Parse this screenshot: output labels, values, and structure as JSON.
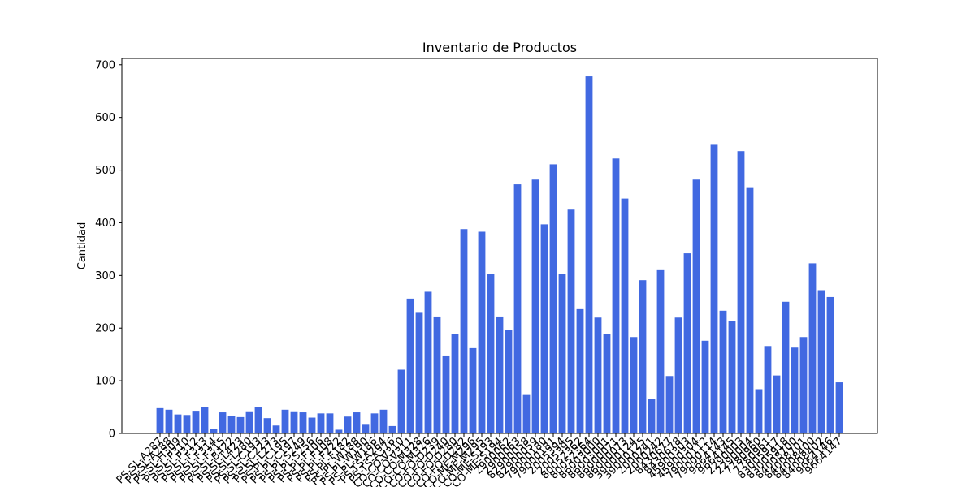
{
  "chart_data": {
    "type": "bar",
    "title": "Inventario de Productos",
    "y_label": "Cantidad",
    "categories": [
      "PS-SL-A287",
      "PS-SL-A288",
      "PS-SL-H309",
      "PS-SL-P310",
      "PS-SL-P312",
      "PS-SL-F313",
      "PS-SL-F314",
      "PS-SL-F315",
      "PS-SL-B422",
      "PS-SL-L423",
      "PS-SL-L280",
      "PS-SL-C193",
      "PS-SL-C223",
      "PS-SL-L273",
      "PS-PL-C195",
      "PS-PL-C197",
      "PS-PL-S249",
      "PS-PL-S256",
      "PS-PL-F106",
      "PS-PL-F108",
      "PS-PL-F222",
      "PS-PL-F182",
      "PS-PL-W188",
      "PS-PL-W190",
      "PS-PL-W186",
      "PS-TS-A264",
      "PS-TS-A376",
      "CO-CO-V310",
      "CO-CO-V311",
      "CO-CO-M328",
      "CO-CO-M326",
      "CO-FO-D239",
      "CO-FO-D240",
      "CO-FO-D280",
      "CO-FO-D282",
      "CO-ME-M296",
      "CO-ME-M295",
      "CO-ME-S193",
      "CO-ME-S194",
      "2900062",
      "2900063",
      "82900058",
      "82900059",
      "79000180",
      "79000181",
      "2005394",
      "2005395",
      "80052362",
      "80052364",
      "86003000",
      "86003001",
      "86000071",
      "86000073",
      "39000124",
      "39000125",
      "2000241",
      "2000242",
      "8430677",
      "8430678",
      "45900303",
      "45900304",
      "79000112",
      "79000114",
      "9664143",
      "9664145",
      "2290003",
      "2290004",
      "7780960",
      "7780961",
      "83005917",
      "83005918",
      "84008700",
      "84008701",
      "84008400",
      "84008402",
      "9664146",
      "9664147"
    ],
    "values": [
      48,
      45,
      36,
      35,
      43,
      50,
      9,
      40,
      33,
      31,
      42,
      50,
      29,
      15,
      45,
      42,
      40,
      30,
      38,
      38,
      7,
      32,
      40,
      18,
      38,
      45,
      14,
      121,
      256,
      229,
      269,
      222,
      148,
      189,
      388,
      162,
      383,
      303,
      222,
      196,
      473,
      73,
      482,
      397,
      511,
      303,
      425,
      236,
      678,
      220,
      189,
      522,
      446,
      183,
      291,
      65,
      310,
      109,
      220,
      342,
      482,
      176,
      548,
      233,
      214,
      536,
      466,
      84,
      166,
      110,
      250,
      163,
      183,
      323,
      272,
      259,
      97
    ],
    "color": "#4169e1",
    "ylim": [
      0,
      712
    ],
    "yticks": [
      0,
      100,
      200,
      300,
      400,
      500,
      600,
      700
    ],
    "grid": false
  }
}
